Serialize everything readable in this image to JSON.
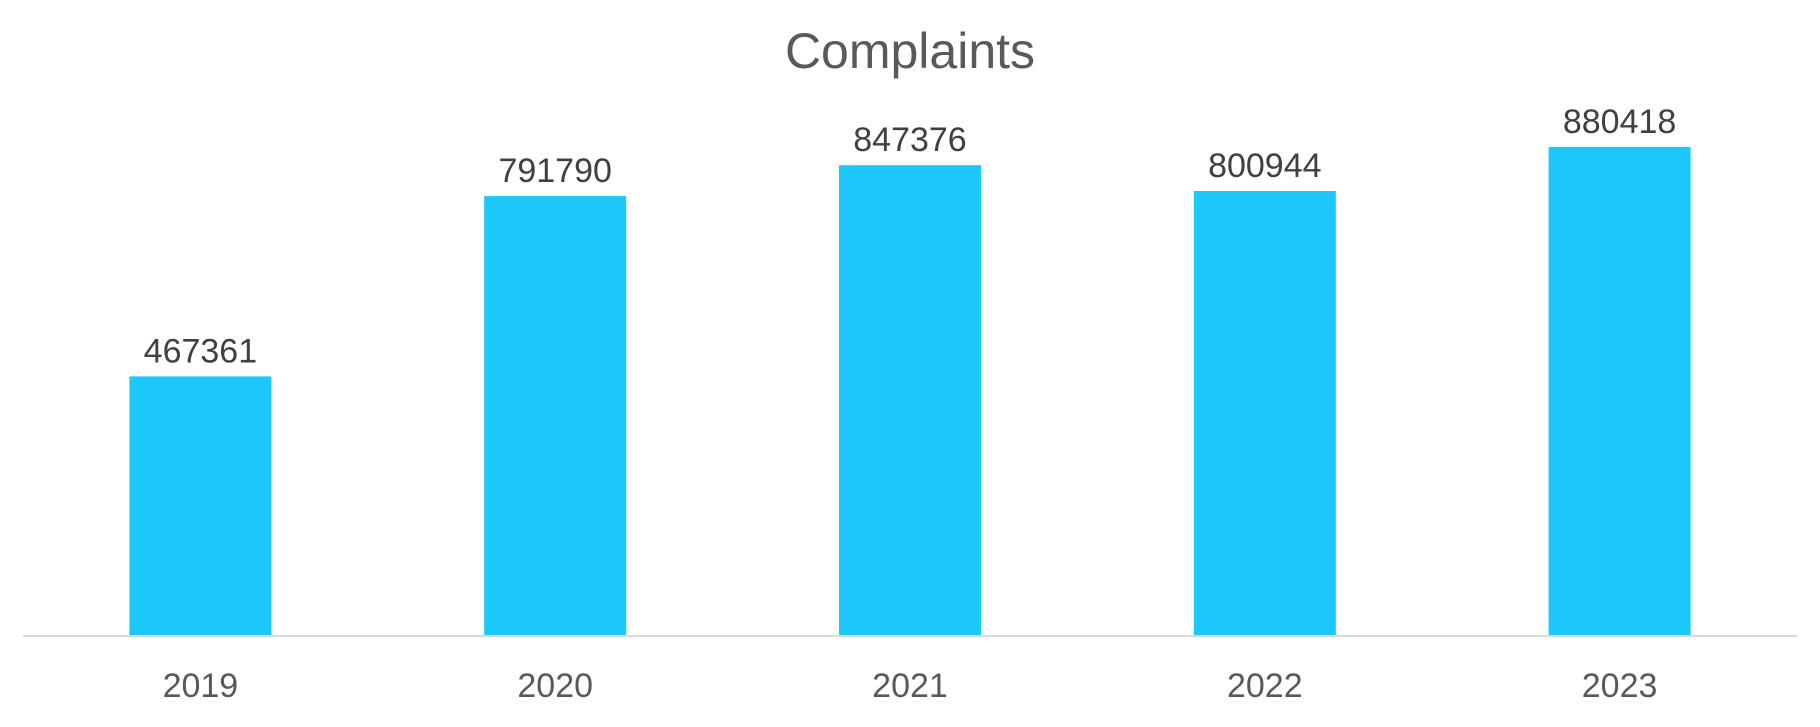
{
  "chart_data": {
    "type": "bar",
    "title": "Complaints",
    "xlabel": "",
    "ylabel": "",
    "categories": [
      "2019",
      "2020",
      "2021",
      "2022",
      "2023"
    ],
    "values": [
      467361,
      791790,
      847376,
      800944,
      880418
    ],
    "data_labels": [
      "467361",
      "791790",
      "847376",
      "800944",
      "880418"
    ],
    "ylim": [
      0,
      900000
    ],
    "grid": false,
    "legend": "none",
    "bar_color": "#1CC7FA",
    "axis_color": "#D9D9D9"
  }
}
